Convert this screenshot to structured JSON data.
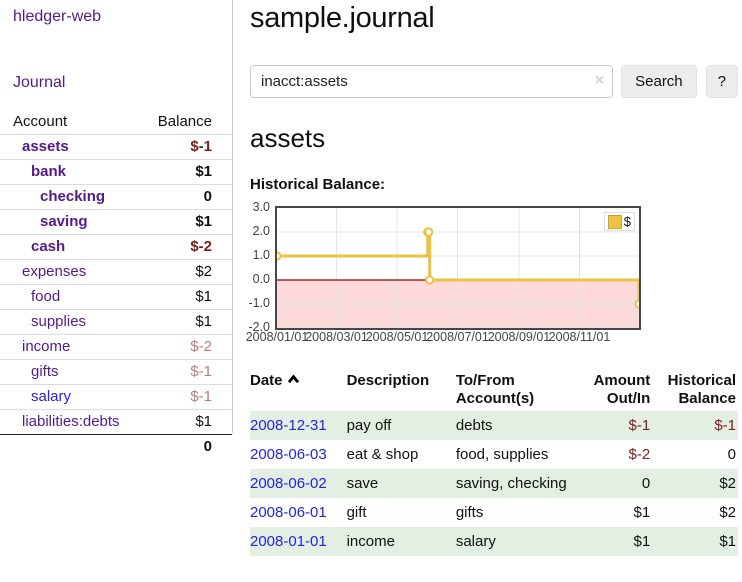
{
  "sidebar": {
    "brand": "hledger-web",
    "nav_journal": "Journal",
    "accounts_header": {
      "account": "Account",
      "balance": "Balance"
    },
    "accounts": [
      {
        "name": "assets",
        "indent": 1,
        "bold": true,
        "balance": "$-1",
        "balance_style": "neg-strong",
        "link_style": "purple"
      },
      {
        "name": "bank",
        "indent": 2,
        "bold": true,
        "balance": "$1",
        "balance_style": "pos-strong",
        "link_style": "purple"
      },
      {
        "name": "checking",
        "indent": 3,
        "bold": true,
        "balance": "0",
        "balance_style": "pos-strong",
        "link_style": "purple"
      },
      {
        "name": "saving",
        "indent": 3,
        "bold": true,
        "balance": "$1",
        "balance_style": "pos-strong",
        "link_style": "purple"
      },
      {
        "name": "cash",
        "indent": 2,
        "bold": true,
        "balance": "$-2",
        "balance_style": "neg-strong",
        "link_style": "purple"
      },
      {
        "name": "expenses",
        "indent": 1,
        "bold": false,
        "balance": "$2",
        "balance_style": "pos",
        "link_style": "purple"
      },
      {
        "name": "food",
        "indent": 2,
        "bold": false,
        "balance": "$1",
        "balance_style": "pos",
        "link_style": "purple"
      },
      {
        "name": "supplies",
        "indent": 2,
        "bold": false,
        "balance": "$1",
        "balance_style": "pos",
        "link_style": "purple"
      },
      {
        "name": "income",
        "indent": 1,
        "bold": false,
        "balance": "$-2",
        "balance_style": "neg-soft",
        "link_style": "purple"
      },
      {
        "name": "gifts",
        "indent": 2,
        "bold": false,
        "balance": "$-1",
        "balance_style": "neg-soft",
        "link_style": "purple"
      },
      {
        "name": "salary",
        "indent": 2,
        "bold": false,
        "balance": "$-1",
        "balance_style": "neg-soft",
        "link_style": "blue"
      },
      {
        "name": "liabilities:debts",
        "indent": 1,
        "bold": false,
        "balance": "$1",
        "balance_style": "pos",
        "link_style": "purple"
      }
    ],
    "total": "0"
  },
  "header": {
    "title": "sample.journal"
  },
  "search": {
    "value": "inacct:assets",
    "clear_icon": "×",
    "button_label": "Search",
    "help_label": "?"
  },
  "account_page": {
    "title": "assets",
    "chart_label": "Historical Balance:"
  },
  "chart_data": {
    "type": "line",
    "step": true,
    "title": "Historical Balance:",
    "series": [
      {
        "name": "$",
        "color": "#edc240",
        "points": [
          [
            "2008-01-01",
            1
          ],
          [
            "2008-06-01",
            2
          ],
          [
            "2008-06-02",
            2
          ],
          [
            "2008-06-03",
            0
          ],
          [
            "2008-12-31",
            -1
          ]
        ]
      }
    ],
    "xlim": [
      "2008-01-01",
      "2008-12-31"
    ],
    "ylim": [
      -2,
      3
    ],
    "y_ticks": [
      3.0,
      2.0,
      1.0,
      0.0,
      -1.0,
      -2.0
    ],
    "x_ticks": [
      "2008/01/01",
      "2008/03/01",
      "2008/05/01",
      "2008/07/01",
      "2008/09/01",
      "2008/11/01"
    ],
    "grid": true,
    "legend_position": "top-right",
    "negative_region_color": "#fcdada",
    "zero_line_color": "#8c0000",
    "grid_color": "#e6e6e6"
  },
  "register": {
    "columns": [
      "Date",
      "Description",
      "To/From Account(s)",
      "Amount Out/In",
      "Historical Balance"
    ],
    "rows": [
      {
        "date": "2008-12-31",
        "description": "pay off",
        "accounts": "debts",
        "amount": "$-1",
        "amount_neg": true,
        "balance": "$-1",
        "balance_neg": true
      },
      {
        "date": "2008-06-03",
        "description": "eat & shop",
        "accounts": "food, supplies",
        "amount": "$-2",
        "amount_neg": true,
        "balance": "0",
        "balance_neg": false
      },
      {
        "date": "2008-06-02",
        "description": "save",
        "accounts": "saving, checking",
        "amount": "0",
        "amount_neg": false,
        "balance": "$2",
        "balance_neg": false
      },
      {
        "date": "2008-06-01",
        "description": "gift",
        "accounts": "gifts",
        "amount": "$1",
        "amount_neg": false,
        "balance": "$2",
        "balance_neg": false
      },
      {
        "date": "2008-01-01",
        "description": "income",
        "accounts": "salary",
        "amount": "$1",
        "amount_neg": false,
        "balance": "$1",
        "balance_neg": false
      }
    ]
  }
}
